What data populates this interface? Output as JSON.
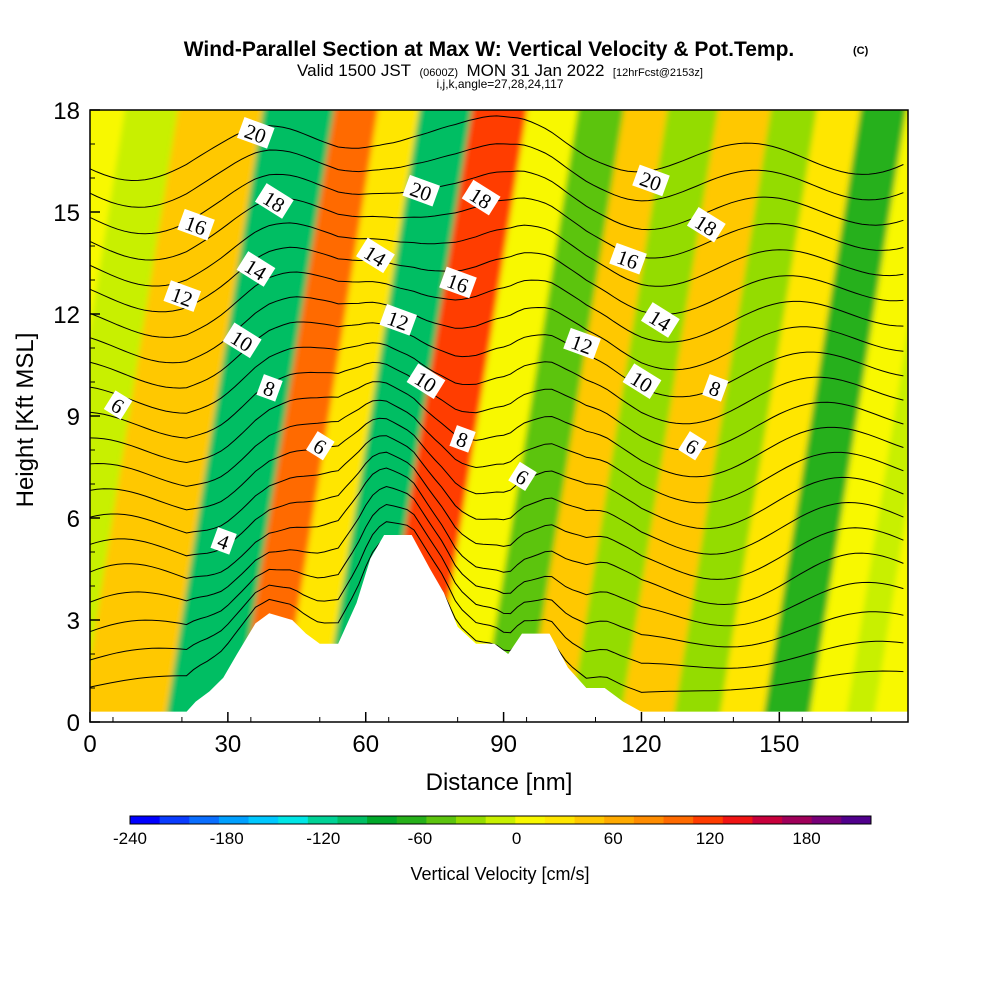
{
  "chart_data": {
    "type": "heatmap",
    "title": "Wind-Parallel Section at Max W: Vertical Velocity & Pot.Temp.",
    "title_mark": "(C)",
    "subtitle_valid": "Valid 1500 JST",
    "subtitle_utc": "(0600Z)",
    "subtitle_date": "MON 31 Jan 2022",
    "subtitle_fcst": "[12hrFcst@2153z]",
    "subtitle_indices": "i,j,k,angle=27,28,24,117",
    "xlabel": "Distance [nm]",
    "ylabel": "Height [Kft MSL]",
    "xlim": [
      0,
      178
    ],
    "ylim": [
      0,
      18
    ],
    "xticks": [
      0,
      30,
      60,
      90,
      120,
      150
    ],
    "yticks": [
      0,
      3,
      6,
      9,
      12,
      15,
      18
    ],
    "colorbar": {
      "label": "Vertical Velocity [cm/s]",
      "ticks": [
        -240,
        -180,
        -120,
        -60,
        0,
        60,
        120,
        180
      ],
      "range": [
        -240,
        220
      ],
      "colors": [
        "#0000ff",
        "#0a3cff",
        "#0a6eff",
        "#00a0ff",
        "#00c8ff",
        "#00e6e6",
        "#00d296",
        "#00be64",
        "#00a82a",
        "#26b01a",
        "#5cc40e",
        "#94dc00",
        "#c8f000",
        "#f8f800",
        "#ffe600",
        "#ffc800",
        "#ffaa00",
        "#ff8c00",
        "#ff6a00",
        "#ff3c00",
        "#f01414",
        "#c8003c",
        "#a0005a",
        "#780078",
        "#50008c"
      ]
    },
    "velocity_bands": [
      {
        "x": 0,
        "w": -5
      },
      {
        "x": 17,
        "w": 40
      },
      {
        "x": 37,
        "w": -95
      },
      {
        "x": 48,
        "w": 95
      },
      {
        "x": 56,
        "w": 20
      },
      {
        "x": 66,
        "w": -110
      },
      {
        "x": 79,
        "w": 120
      },
      {
        "x": 90,
        "w": 5
      },
      {
        "x": 101,
        "w": -45
      },
      {
        "x": 110,
        "w": 40
      },
      {
        "x": 120,
        "w": -30
      },
      {
        "x": 132,
        "w": 50
      },
      {
        "x": 143,
        "w": -25
      },
      {
        "x": 152,
        "w": 20
      },
      {
        "x": 162,
        "w": -60
      },
      {
        "x": 172,
        "w": 15
      },
      {
        "x": 178,
        "w": -10
      }
    ],
    "theta_contours": [
      {
        "level": 4,
        "labels": [
          {
            "x": 29,
            "y": 5.3
          }
        ]
      },
      {
        "level": 6,
        "labels": [
          {
            "x": 6,
            "y": 9.3
          },
          {
            "x": 50,
            "y": 8.1
          },
          {
            "x": 94,
            "y": 7.2
          },
          {
            "x": 131,
            "y": 8.1
          }
        ]
      },
      {
        "level": 8,
        "labels": [
          {
            "x": 39,
            "y": 9.8
          },
          {
            "x": 81,
            "y": 8.3
          },
          {
            "x": 136,
            "y": 9.8
          }
        ]
      },
      {
        "level": 10,
        "labels": [
          {
            "x": 33,
            "y": 11.2
          },
          {
            "x": 73,
            "y": 10.0
          },
          {
            "x": 120,
            "y": 10.0
          }
        ]
      },
      {
        "level": 12,
        "labels": [
          {
            "x": 20,
            "y": 12.5
          },
          {
            "x": 67,
            "y": 11.8
          },
          {
            "x": 107,
            "y": 11.1
          }
        ]
      },
      {
        "level": 14,
        "labels": [
          {
            "x": 36,
            "y": 13.3
          },
          {
            "x": 62,
            "y": 13.7
          },
          {
            "x": 124,
            "y": 11.8
          }
        ]
      },
      {
        "level": 16,
        "labels": [
          {
            "x": 23,
            "y": 14.6
          },
          {
            "x": 80,
            "y": 12.9
          },
          {
            "x": 117,
            "y": 13.6
          }
        ]
      },
      {
        "level": 18,
        "labels": [
          {
            "x": 40,
            "y": 15.3
          },
          {
            "x": 85,
            "y": 15.4
          },
          {
            "x": 134,
            "y": 14.6
          }
        ]
      },
      {
        "level": 20,
        "labels": [
          {
            "x": 36,
            "y": 17.3
          },
          {
            "x": 72,
            "y": 15.6
          },
          {
            "x": 122,
            "y": 15.9
          }
        ]
      }
    ],
    "terrain": [
      [
        0,
        0.3
      ],
      [
        21,
        0.3
      ],
      [
        23,
        0.6
      ],
      [
        26,
        0.9
      ],
      [
        29,
        1.3
      ],
      [
        32,
        2.0
      ],
      [
        36,
        2.9
      ],
      [
        39,
        3.2
      ],
      [
        44,
        3.0
      ],
      [
        47,
        2.6
      ],
      [
        50,
        2.3
      ],
      [
        54,
        2.3
      ],
      [
        58,
        3.5
      ],
      [
        61,
        4.8
      ],
      [
        64,
        5.5
      ],
      [
        70,
        5.5
      ],
      [
        74,
        4.5
      ],
      [
        77,
        3.8
      ],
      [
        80,
        2.8
      ],
      [
        84,
        2.3
      ],
      [
        88,
        2.3
      ],
      [
        91,
        2.0
      ],
      [
        94,
        2.6
      ],
      [
        100,
        2.6
      ],
      [
        104,
        1.6
      ],
      [
        108,
        1.0
      ],
      [
        112,
        1.0
      ],
      [
        116,
        0.6
      ],
      [
        120,
        0.3
      ],
      [
        178,
        0.3
      ]
    ]
  }
}
